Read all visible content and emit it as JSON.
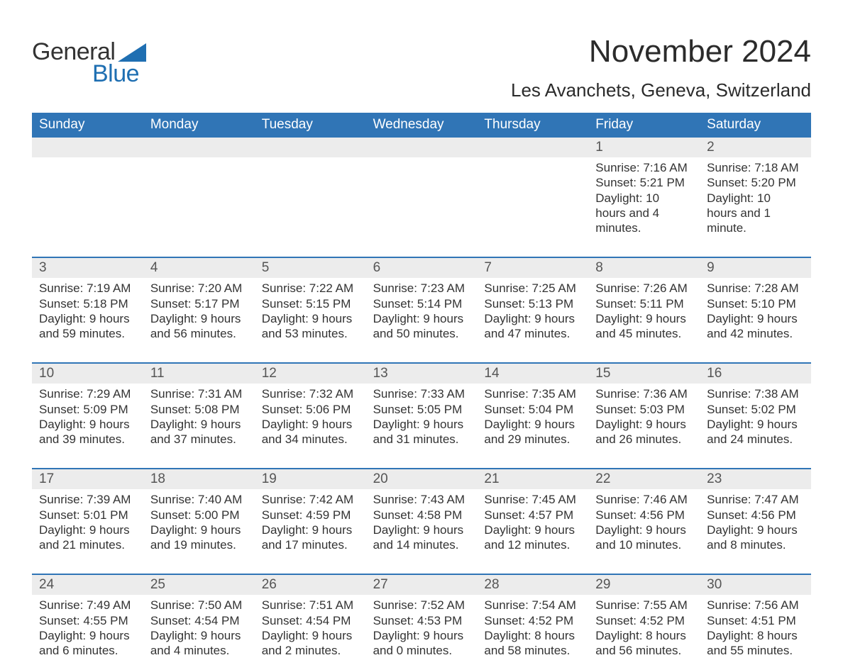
{
  "logo": {
    "word1": "General",
    "word2": "Blue"
  },
  "title": "November 2024",
  "location": "Les Avanchets, Geneva, Switzerland",
  "weekdays": [
    "Sunday",
    "Monday",
    "Tuesday",
    "Wednesday",
    "Thursday",
    "Friday",
    "Saturday"
  ],
  "colors": {
    "header_bg": "#3075b6",
    "header_text": "#ffffff",
    "strip_bg": "#ececec",
    "divider": "#3075b6",
    "body_text": "#333333",
    "daynum_text": "#555555",
    "logo_blue": "#1f6fb2",
    "logo_dark": "#333333",
    "background": "#ffffff"
  },
  "typography": {
    "title_fontsize": 44,
    "location_fontsize": 26,
    "weekday_fontsize": 19,
    "daynum_fontsize": 19,
    "detail_fontsize": 17,
    "logo_fontsize": 34
  },
  "layout": {
    "columns": 7,
    "rows": 5,
    "start_day_index": 5,
    "days_in_month": 30
  },
  "weeks": [
    [
      {
        "day": "",
        "sunrise": "",
        "sunset": "",
        "daylight": ""
      },
      {
        "day": "",
        "sunrise": "",
        "sunset": "",
        "daylight": ""
      },
      {
        "day": "",
        "sunrise": "",
        "sunset": "",
        "daylight": ""
      },
      {
        "day": "",
        "sunrise": "",
        "sunset": "",
        "daylight": ""
      },
      {
        "day": "",
        "sunrise": "",
        "sunset": "",
        "daylight": ""
      },
      {
        "day": "1",
        "sunrise": "Sunrise: 7:16 AM",
        "sunset": "Sunset: 5:21 PM",
        "daylight": "Daylight: 10 hours and 4 minutes."
      },
      {
        "day": "2",
        "sunrise": "Sunrise: 7:18 AM",
        "sunset": "Sunset: 5:20 PM",
        "daylight": "Daylight: 10 hours and 1 minute."
      }
    ],
    [
      {
        "day": "3",
        "sunrise": "Sunrise: 7:19 AM",
        "sunset": "Sunset: 5:18 PM",
        "daylight": "Daylight: 9 hours and 59 minutes."
      },
      {
        "day": "4",
        "sunrise": "Sunrise: 7:20 AM",
        "sunset": "Sunset: 5:17 PM",
        "daylight": "Daylight: 9 hours and 56 minutes."
      },
      {
        "day": "5",
        "sunrise": "Sunrise: 7:22 AM",
        "sunset": "Sunset: 5:15 PM",
        "daylight": "Daylight: 9 hours and 53 minutes."
      },
      {
        "day": "6",
        "sunrise": "Sunrise: 7:23 AM",
        "sunset": "Sunset: 5:14 PM",
        "daylight": "Daylight: 9 hours and 50 minutes."
      },
      {
        "day": "7",
        "sunrise": "Sunrise: 7:25 AM",
        "sunset": "Sunset: 5:13 PM",
        "daylight": "Daylight: 9 hours and 47 minutes."
      },
      {
        "day": "8",
        "sunrise": "Sunrise: 7:26 AM",
        "sunset": "Sunset: 5:11 PM",
        "daylight": "Daylight: 9 hours and 45 minutes."
      },
      {
        "day": "9",
        "sunrise": "Sunrise: 7:28 AM",
        "sunset": "Sunset: 5:10 PM",
        "daylight": "Daylight: 9 hours and 42 minutes."
      }
    ],
    [
      {
        "day": "10",
        "sunrise": "Sunrise: 7:29 AM",
        "sunset": "Sunset: 5:09 PM",
        "daylight": "Daylight: 9 hours and 39 minutes."
      },
      {
        "day": "11",
        "sunrise": "Sunrise: 7:31 AM",
        "sunset": "Sunset: 5:08 PM",
        "daylight": "Daylight: 9 hours and 37 minutes."
      },
      {
        "day": "12",
        "sunrise": "Sunrise: 7:32 AM",
        "sunset": "Sunset: 5:06 PM",
        "daylight": "Daylight: 9 hours and 34 minutes."
      },
      {
        "day": "13",
        "sunrise": "Sunrise: 7:33 AM",
        "sunset": "Sunset: 5:05 PM",
        "daylight": "Daylight: 9 hours and 31 minutes."
      },
      {
        "day": "14",
        "sunrise": "Sunrise: 7:35 AM",
        "sunset": "Sunset: 5:04 PM",
        "daylight": "Daylight: 9 hours and 29 minutes."
      },
      {
        "day": "15",
        "sunrise": "Sunrise: 7:36 AM",
        "sunset": "Sunset: 5:03 PM",
        "daylight": "Daylight: 9 hours and 26 minutes."
      },
      {
        "day": "16",
        "sunrise": "Sunrise: 7:38 AM",
        "sunset": "Sunset: 5:02 PM",
        "daylight": "Daylight: 9 hours and 24 minutes."
      }
    ],
    [
      {
        "day": "17",
        "sunrise": "Sunrise: 7:39 AM",
        "sunset": "Sunset: 5:01 PM",
        "daylight": "Daylight: 9 hours and 21 minutes."
      },
      {
        "day": "18",
        "sunrise": "Sunrise: 7:40 AM",
        "sunset": "Sunset: 5:00 PM",
        "daylight": "Daylight: 9 hours and 19 minutes."
      },
      {
        "day": "19",
        "sunrise": "Sunrise: 7:42 AM",
        "sunset": "Sunset: 4:59 PM",
        "daylight": "Daylight: 9 hours and 17 minutes."
      },
      {
        "day": "20",
        "sunrise": "Sunrise: 7:43 AM",
        "sunset": "Sunset: 4:58 PM",
        "daylight": "Daylight: 9 hours and 14 minutes."
      },
      {
        "day": "21",
        "sunrise": "Sunrise: 7:45 AM",
        "sunset": "Sunset: 4:57 PM",
        "daylight": "Daylight: 9 hours and 12 minutes."
      },
      {
        "day": "22",
        "sunrise": "Sunrise: 7:46 AM",
        "sunset": "Sunset: 4:56 PM",
        "daylight": "Daylight: 9 hours and 10 minutes."
      },
      {
        "day": "23",
        "sunrise": "Sunrise: 7:47 AM",
        "sunset": "Sunset: 4:56 PM",
        "daylight": "Daylight: 9 hours and 8 minutes."
      }
    ],
    [
      {
        "day": "24",
        "sunrise": "Sunrise: 7:49 AM",
        "sunset": "Sunset: 4:55 PM",
        "daylight": "Daylight: 9 hours and 6 minutes."
      },
      {
        "day": "25",
        "sunrise": "Sunrise: 7:50 AM",
        "sunset": "Sunset: 4:54 PM",
        "daylight": "Daylight: 9 hours and 4 minutes."
      },
      {
        "day": "26",
        "sunrise": "Sunrise: 7:51 AM",
        "sunset": "Sunset: 4:54 PM",
        "daylight": "Daylight: 9 hours and 2 minutes."
      },
      {
        "day": "27",
        "sunrise": "Sunrise: 7:52 AM",
        "sunset": "Sunset: 4:53 PM",
        "daylight": "Daylight: 9 hours and 0 minutes."
      },
      {
        "day": "28",
        "sunrise": "Sunrise: 7:54 AM",
        "sunset": "Sunset: 4:52 PM",
        "daylight": "Daylight: 8 hours and 58 minutes."
      },
      {
        "day": "29",
        "sunrise": "Sunrise: 7:55 AM",
        "sunset": "Sunset: 4:52 PM",
        "daylight": "Daylight: 8 hours and 56 minutes."
      },
      {
        "day": "30",
        "sunrise": "Sunrise: 7:56 AM",
        "sunset": "Sunset: 4:51 PM",
        "daylight": "Daylight: 8 hours and 55 minutes."
      }
    ]
  ]
}
